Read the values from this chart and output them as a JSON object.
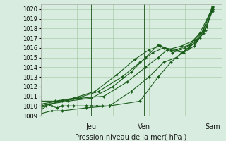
{
  "title": "",
  "xlabel": "Pression niveau de la mer( hPa )",
  "ylim": [
    1009,
    1020.5
  ],
  "yticks": [
    1009,
    1010,
    1011,
    1012,
    1013,
    1014,
    1015,
    1016,
    1017,
    1018,
    1019,
    1020
  ],
  "bg_color": "#d8ede0",
  "grid_color": "#aaccaa",
  "line_color": "#1a5c1a",
  "x_day_labels": [
    [
      "Jeu",
      0.28
    ],
    [
      "Ven",
      0.57
    ],
    [
      "Sam",
      0.95
    ]
  ],
  "series": [
    [
      0.0,
      1009.5,
      0.03,
      1010.0,
      0.06,
      1010.0,
      0.09,
      1009.8,
      0.12,
      1010.0,
      0.15,
      1010.0,
      0.18,
      1010.0,
      0.25,
      1010.0,
      0.28,
      1010.0,
      0.31,
      1010.0,
      0.34,
      1010.0,
      0.38,
      1010.0,
      0.55,
      1010.5,
      0.65,
      1013.0,
      0.72,
      1014.5,
      0.78,
      1015.5,
      0.85,
      1016.5,
      0.9,
      1017.5,
      0.95,
      1020.0
    ],
    [
      0.0,
      1009.2,
      0.06,
      1009.5,
      0.12,
      1009.5,
      0.25,
      1009.8,
      0.38,
      1010.0,
      0.5,
      1011.5,
      0.6,
      1013.0,
      0.68,
      1014.5,
      0.75,
      1015.0,
      0.82,
      1016.0,
      0.88,
      1017.0,
      0.95,
      1020.2
    ],
    [
      0.0,
      1010.0,
      0.12,
      1010.5,
      0.22,
      1010.8,
      0.35,
      1011.0,
      0.48,
      1012.5,
      0.58,
      1014.0,
      0.65,
      1015.0,
      0.7,
      1015.8,
      0.78,
      1016.2,
      0.85,
      1016.8,
      0.9,
      1017.8,
      0.95,
      1020.3
    ],
    [
      0.0,
      1010.2,
      0.1,
      1010.5,
      0.2,
      1010.8,
      0.32,
      1011.5,
      0.45,
      1013.0,
      0.55,
      1014.5,
      0.62,
      1015.5,
      0.68,
      1016.0,
      0.75,
      1015.8,
      0.82,
      1016.3,
      0.88,
      1017.5,
      0.95,
      1020.1
    ],
    [
      0.0,
      1010.5,
      0.08,
      1010.5,
      0.18,
      1010.8,
      0.3,
      1011.5,
      0.42,
      1013.2,
      0.52,
      1014.8,
      0.6,
      1015.8,
      0.66,
      1016.2,
      0.73,
      1015.5,
      0.8,
      1016.0,
      0.86,
      1016.8,
      0.92,
      1018.2,
      0.95,
      1020.0
    ],
    [
      0.0,
      1009.8,
      0.05,
      1010.2,
      0.15,
      1010.5,
      0.28,
      1010.8,
      0.4,
      1012.0,
      0.5,
      1013.5,
      0.58,
      1015.0,
      0.65,
      1016.3,
      0.72,
      1015.8,
      0.79,
      1015.5,
      0.85,
      1016.2,
      0.91,
      1017.8,
      0.95,
      1019.8
    ]
  ],
  "xtick_vlines": [
    0.28,
    0.57
  ],
  "label_fontsize": 7,
  "tick_fontsize": 6
}
